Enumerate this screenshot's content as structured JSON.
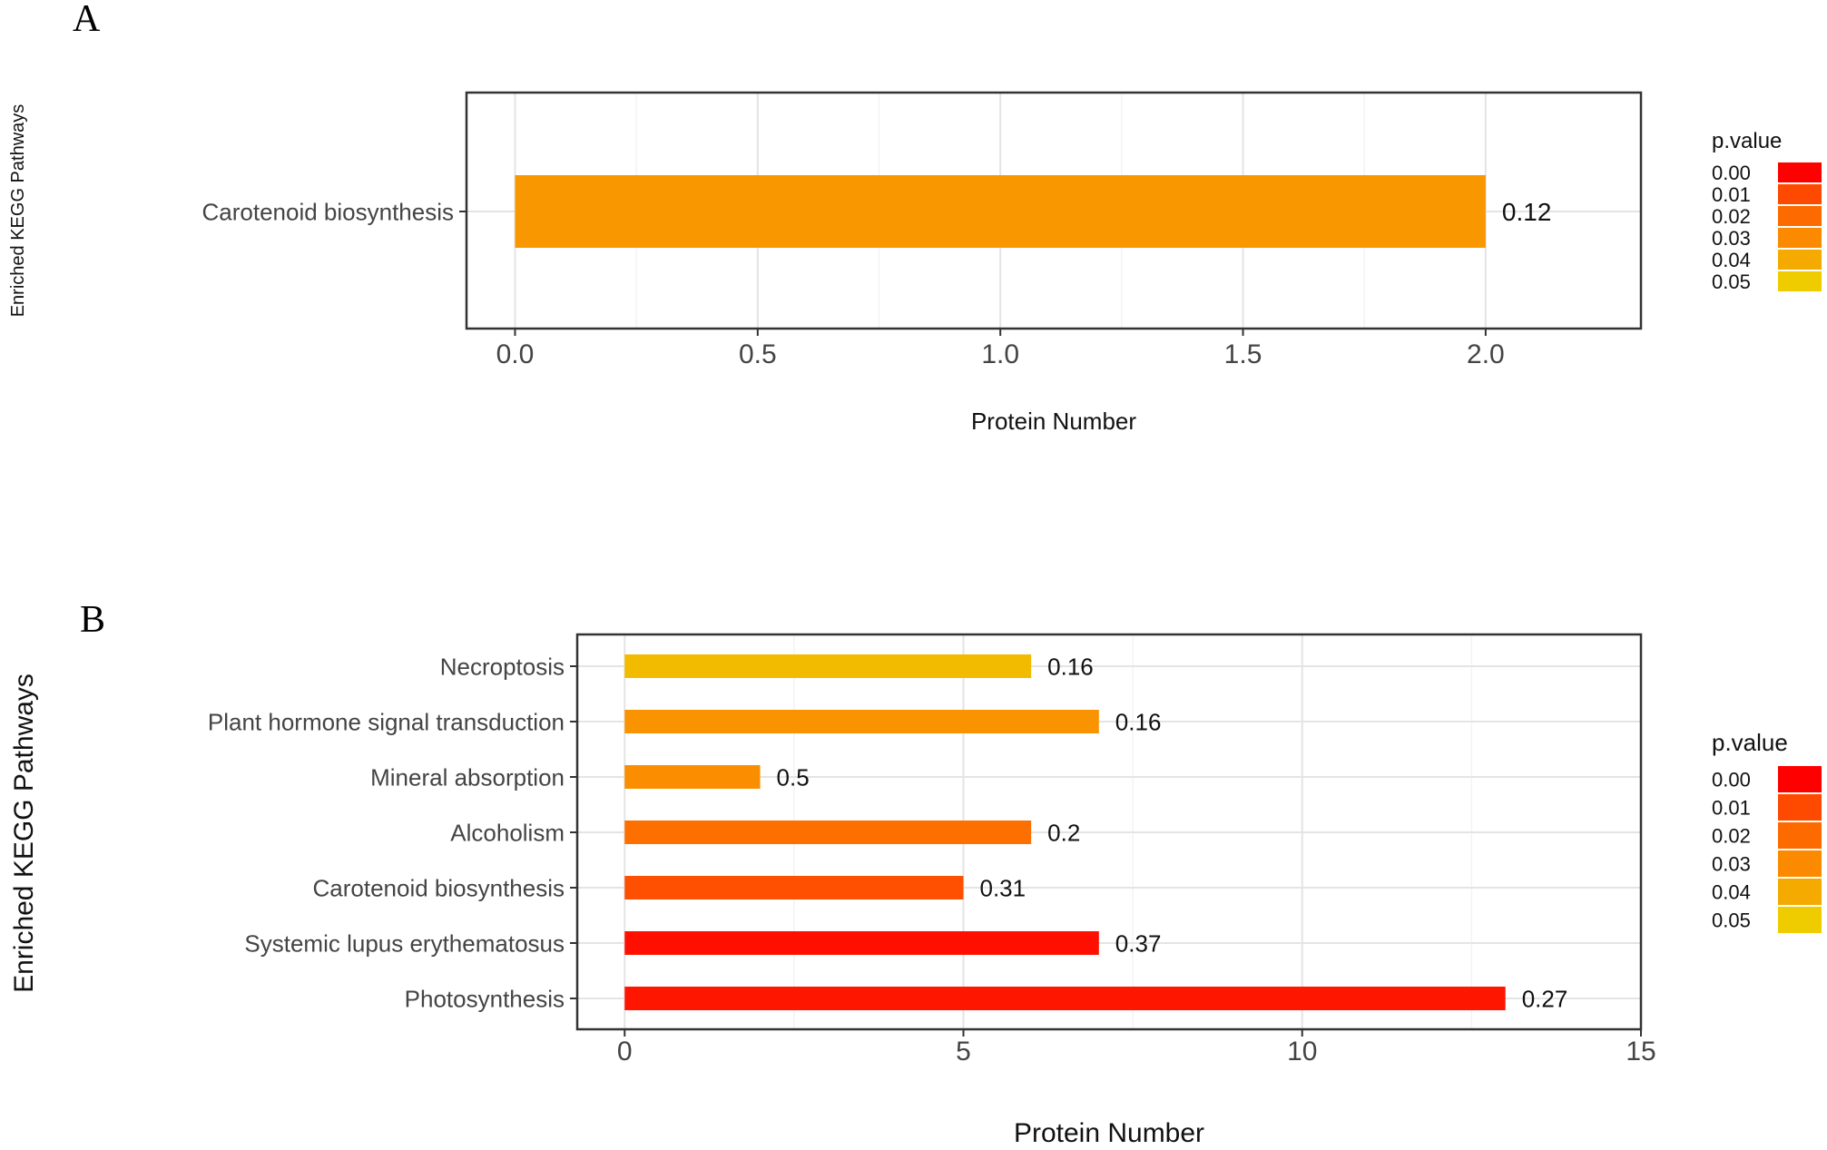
{
  "chart_data": [
    {
      "panel": "A",
      "type": "bar",
      "orientation": "horizontal",
      "ylabel": "Enriched KEGG Pathways",
      "xlabel": "Protein Number",
      "categories": [
        "Carotenoid biosynthesis"
      ],
      "values": [
        2
      ],
      "pvalues": [
        0.034
      ],
      "data_labels": [
        "0.12"
      ],
      "xlim": [
        -0.1,
        2.32
      ],
      "xticks": [
        0,
        0.5,
        1,
        1.5,
        2
      ],
      "xtick_labels": [
        "0.0",
        "0.5",
        "1.0",
        "1.5",
        "2.0"
      ],
      "grid": true,
      "legend": {
        "title": "p.value",
        "position": "right",
        "labels": [
          "0.00",
          "0.01",
          "0.02",
          "0.03",
          "0.04",
          "0.05"
        ],
        "colors": [
          "#ff0000",
          "#fe4a00",
          "#fd6a00",
          "#fb8a00",
          "#f5aa00",
          "#eecc00"
        ]
      }
    },
    {
      "panel": "B",
      "type": "bar",
      "orientation": "horizontal",
      "ylabel": "Enriched KEGG Pathways",
      "xlabel": "Protein Number",
      "categories": [
        "Necroptosis",
        "Plant hormone signal transduction",
        "Mineral absorption",
        "Alcoholism",
        "Carotenoid biosynthesis",
        "Systemic lupus erythematosus",
        "Photosynthesis"
      ],
      "values": [
        6,
        7,
        2,
        6,
        5,
        7,
        13
      ],
      "pvalues": [
        0.045,
        0.033,
        0.031,
        0.022,
        0.012,
        0.002,
        0.003
      ],
      "data_labels": [
        "0.16",
        "0.16",
        "0.5",
        "0.2",
        "0.31",
        "0.37",
        "0.27"
      ],
      "xlim": [
        -0.7,
        15
      ],
      "xticks": [
        0,
        5,
        10,
        15
      ],
      "xtick_labels": [
        "0",
        "5",
        "10",
        "15"
      ],
      "grid": true,
      "legend": {
        "title": "p.value",
        "position": "right",
        "labels": [
          "0.00",
          "0.01",
          "0.02",
          "0.03",
          "0.04",
          "0.05"
        ],
        "colors": [
          "#ff0000",
          "#fe4a00",
          "#fd6a00",
          "#fb8a00",
          "#f5aa00",
          "#eecc00"
        ]
      }
    }
  ]
}
